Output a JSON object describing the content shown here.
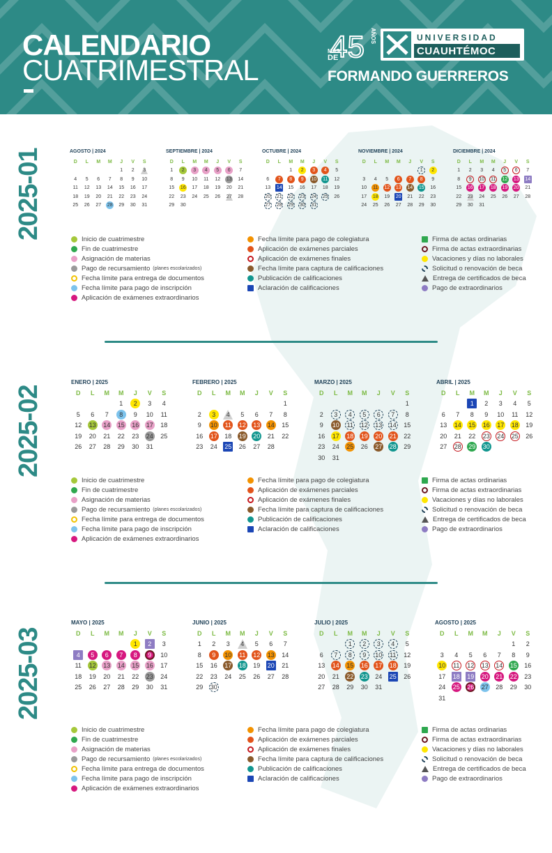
{
  "header": {
    "title_line1": "CALENDARIO",
    "title_line2": "CUATRIMESTRAL",
    "logo_number": "45",
    "logo_mas": "MÁS",
    "logo_de": "DE",
    "logo_anos": "AÑOS",
    "university_line1": "UNIVERSIDAD",
    "university_line2": "CUAUHTÉMOC",
    "slogan": "FORMANDO GUERREROS"
  },
  "day_headers": [
    "D",
    "L",
    "M",
    "M",
    "J",
    "V",
    "S"
  ],
  "colors": {
    "lime": "#a5c83a",
    "green": "#2fa84f",
    "pink": "#e8a0c7",
    "gray": "#9a9a9a",
    "yellow_ring": "#f2c200",
    "lightblue": "#7dc3ec",
    "magenta": "#d6187f",
    "orange": "#f39200",
    "orange_dark": "#e2541b",
    "red_ring": "#c4161c",
    "brown": "#8a5a2b",
    "teal": "#11968f",
    "blue": "#1b46b5",
    "yellow": "#ffe600",
    "purple": "#8e7cc3",
    "dark_ring": "#6b1620",
    "navy": "#1d3f56"
  },
  "legend": {
    "inicio": "Inicio de cuatrimestre",
    "fin": "Fin de cuatrimestre",
    "asignacion": "Asignación de materias",
    "recursamiento": "Pago de recursamiento",
    "recursamiento_note": "(planes escolarizados)",
    "entrega_docs": "Fecha límite para entrega de documentos",
    "pago_inscripcion": "Fecha límite para pago de inscripción",
    "extraordinarios": "Aplicación de exámenes extraordinarios",
    "pago_colegiatura": "Fecha límite para pago de colegiatura",
    "parciales": "Aplicación de exámenes parciales",
    "finales": "Aplicación de exámenes finales",
    "captura": "Fecha límite para captura de calificaciones",
    "publicacion": "Publicación de calificaciones",
    "aclaracion": "Aclaración de calificaciones",
    "actas_ord": "Firma de actas ordinarias",
    "actas_ext": "Firma de actas extraordinarias",
    "vacaciones": "Vacaciones y días no laborales",
    "beca": "Solicitud o renovación de beca",
    "certificados": "Entrega de certificados de beca",
    "pago_extra": "Pago de extraordinarios"
  },
  "sections": [
    {
      "label": "2025-01",
      "months": [
        {
          "title": "AGOSTO | 2024",
          "start": 4,
          "days": 31,
          "marks": {
            "3": "tri",
            "28": "lightblue"
          }
        },
        {
          "title": "SEPTIEMBRE | 2024",
          "start": 0,
          "days": 30,
          "marks": {
            "2": "lime",
            "3": "pink",
            "4": "pink",
            "5": "pink",
            "6": "pink",
            "13": "gray",
            "16": "yellow",
            "27": "tri"
          }
        },
        {
          "title": "OCTUBRE | 2024",
          "start": 2,
          "days": 31,
          "marks": {
            "2": "yellow",
            "3": "orange_dark",
            "4": "orange_dark",
            "11": "teal",
            "14": "blue",
            "10": "brown",
            "7": "orange_dark",
            "8": "orange_dark",
            "9": "orange_dark",
            "20": "dash",
            "21": "dash",
            "22": "dash",
            "23": "dash",
            "24": "dash",
            "25": "dash",
            "27": "dash",
            "28": "dash",
            "29": "dash",
            "30": "dash",
            "31": "dash"
          }
        },
        {
          "title": "NOVIEMBRE | 2024",
          "start": 5,
          "days": 30,
          "marks": {
            "1": "dash",
            "2": "yellow",
            "6": "orange_dark",
            "7": "orange_dark",
            "8": "orange_dark",
            "11": "orange",
            "12": "orange_dark",
            "13": "orange_dark",
            "14": "brown",
            "15": "teal",
            "18": "yellow",
            "20": "blue"
          }
        },
        {
          "title": "DICIEMBRE | 2024",
          "start": 0,
          "days": 31,
          "marks": {
            "5": "red_ring",
            "6": "red_ring",
            "9": "red_ring",
            "10": "red_ring",
            "11": "red_ring",
            "12": "green",
            "13": "magenta",
            "14": "purple",
            "16": "magenta",
            "17": "magenta",
            "18": "magenta",
            "19": "magenta",
            "20": "magenta",
            "23": "tri"
          }
        }
      ]
    },
    {
      "label": "2025-02",
      "months": [
        {
          "title": "ENERO | 2025",
          "start": 3,
          "days": 31,
          "marks": {
            "2": "yellow",
            "8": "lightblue",
            "13": "lime",
            "14": "pink",
            "15": "pink",
            "16": "pink",
            "17": "pink",
            "24": "gray"
          }
        },
        {
          "title": "FEBRERO | 2025",
          "start": 6,
          "days": 28,
          "marks": {
            "3": "yellow",
            "4": "tri",
            "10": "orange",
            "11": "orange_dark",
            "12": "orange_dark",
            "13": "orange_dark",
            "14": "orange",
            "17": "orange_dark",
            "19": "brown",
            "20": "teal",
            "25": "blue"
          }
        },
        {
          "title": "MARZO | 2025",
          "start": 6,
          "days": 31,
          "marks": {
            "3": "dash",
            "4": "dash",
            "5": "dash",
            "6": "dash",
            "7": "dash",
            "10": "brown",
            "11": "dash",
            "12": "dash",
            "13": "dash",
            "14": "dash",
            "17": "yellow",
            "18": "orange_dark",
            "19": "orange_dark",
            "20": "orange_dark",
            "21": "orange_dark",
            "25": "orange",
            "27": "brown",
            "28": "teal"
          }
        },
        {
          "title": "ABRIL | 2025",
          "start": 2,
          "days": 30,
          "marks": {
            "1": "blue",
            "14": "yellow",
            "15": "yellow",
            "16": "yellow",
            "17": "yellow",
            "18": "yellow",
            "23": "red_ring",
            "24": "red_ring",
            "25": "red_ring",
            "28": "red_ring",
            "29": "green",
            "30": "teal"
          }
        }
      ]
    },
    {
      "label": "2025-03",
      "months": [
        {
          "title": "MAYO | 2025",
          "start": 4,
          "days": 31,
          "marks": {
            "1": "yellow",
            "2": "purple",
            "4": "purple",
            "5": "magenta",
            "6": "magenta",
            "7": "magenta",
            "8": "magenta",
            "9": "dark_ring",
            "12": "lime",
            "13": "pink",
            "14": "pink",
            "15": "pink",
            "16": "pink",
            "23": "gray"
          }
        },
        {
          "title": "JUNIO | 2025",
          "start": 0,
          "days": 30,
          "marks": {
            "4": "tri",
            "9": "orange_dark",
            "10": "orange",
            "11": "orange_dark",
            "12": "orange_dark",
            "13": "orange",
            "17": "brown",
            "18": "teal",
            "20": "blue",
            "30": "dash"
          }
        },
        {
          "title": "JULIO | 2025",
          "start": 2,
          "days": 31,
          "marks": {
            "1": "dash",
            "2": "dash",
            "3": "dash",
            "4": "dash",
            "7": "dash",
            "8": "dash",
            "9": "dash",
            "10": "dash",
            "11": "dash",
            "14": "orange_dark",
            "15": "orange",
            "16": "orange_dark",
            "17": "orange_dark",
            "18": "orange_dark",
            "22": "brown",
            "23": "teal",
            "25": "blue"
          }
        },
        {
          "title": "AGOSTO | 2025",
          "start": 5,
          "days": 31,
          "marks": {
            "10": "yellow",
            "11": "red_ring",
            "12": "red_ring",
            "13": "red_ring",
            "14": "red_ring",
            "15": "green",
            "18": "purple",
            "19": "purple",
            "20": "magenta",
            "21": "magenta",
            "22": "magenta",
            "25": "magenta",
            "26": "dark_ring",
            "27": "lightblue"
          }
        }
      ]
    }
  ]
}
